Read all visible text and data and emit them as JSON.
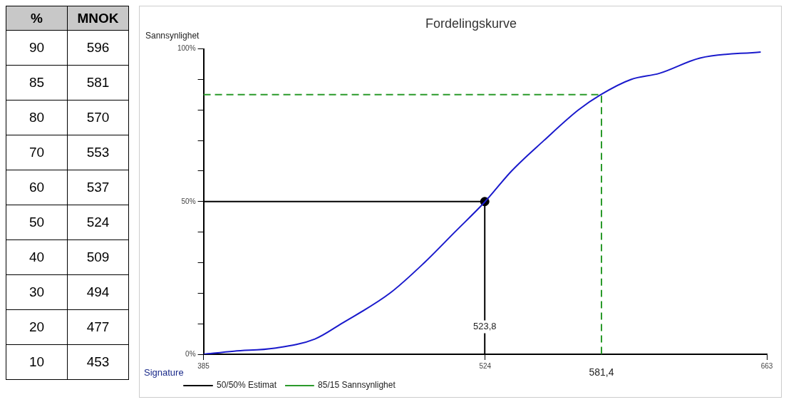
{
  "chart_data": {
    "type": "line",
    "title": "Fordelingskurve",
    "ylabel": "Sannsynlighet",
    "xlabel": "Signature",
    "xlim": [
      385,
      663
    ],
    "xticks": [
      385,
      524,
      663
    ],
    "ylim": [
      0,
      100
    ],
    "yticks": [
      {
        "value": 0,
        "label": "0%"
      },
      {
        "value": 10,
        "label": null
      },
      {
        "value": 20,
        "label": null
      },
      {
        "value": 30,
        "label": null
      },
      {
        "value": 40,
        "label": null
      },
      {
        "value": 50,
        "label": "50%"
      },
      {
        "value": 60,
        "label": null
      },
      {
        "value": 70,
        "label": null
      },
      {
        "value": 80,
        "label": null
      },
      {
        "value": 90,
        "label": null
      },
      {
        "value": 100,
        "label": "100%"
      }
    ],
    "grid": false,
    "legend": "bottom left",
    "series": [
      {
        "color": "#1a1acc",
        "x": [
          385,
          400,
          420,
          440,
          453,
          477,
          494,
          509,
          524,
          537,
          553,
          570,
          581,
          596,
          610,
          630,
          660
        ],
        "values": [
          0,
          1,
          2,
          5,
          10,
          20,
          30,
          40,
          50,
          60,
          70,
          80,
          85,
          90,
          92,
          97,
          99
        ]
      },
      {
        "name": "50/50% Estimat",
        "color": "#000000",
        "x": [
          385,
          523.8,
          523.8
        ],
        "values": [
          50,
          50,
          0
        ]
      },
      {
        "name": "85/15 Sannsynlighet",
        "color": "#2a9a2a",
        "line_style": "dashed",
        "x": [
          385,
          581.4,
          581.4
        ],
        "values": [
          85,
          85,
          0
        ]
      },
      {
        "type": "scatter",
        "color": "#000000",
        "marker": "circle",
        "x": [
          523.8
        ],
        "values": [
          50
        ]
      }
    ],
    "annotations": [
      "%",
      "MNOK",
      "90",
      "596",
      "85",
      "581",
      "80",
      "570",
      "70",
      "553",
      "60",
      "537",
      "50",
      "524",
      "40",
      "509",
      "30",
      "494",
      "20",
      "477",
      "10",
      "453",
      {
        "text": "523,8",
        "x": 523.8,
        "y": 9
      },
      {
        "text": "581,4",
        "x": 581.4,
        "y": 0
      }
    ]
  }
}
